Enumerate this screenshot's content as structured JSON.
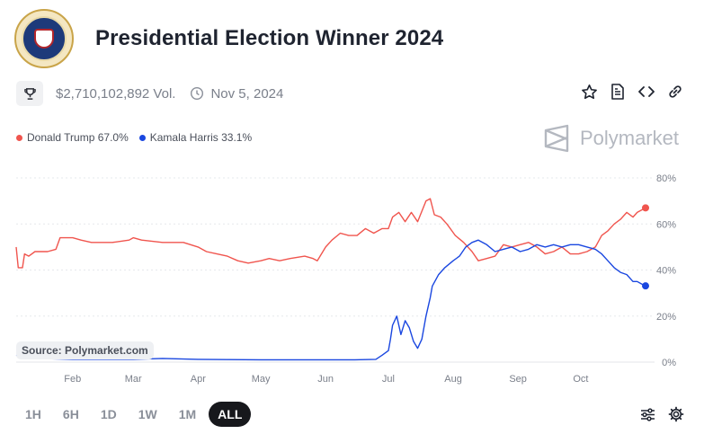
{
  "header": {
    "title": "Presidential Election Winner 2024"
  },
  "meta": {
    "volume": "$2,710,102,892 Vol.",
    "end_date": "Nov 5, 2024"
  },
  "brand": {
    "name": "Polymarket"
  },
  "source": "Source: Polymarket.com",
  "colors": {
    "trump": "#f0554e",
    "harris": "#1a47e0",
    "active_range": "#17181c"
  },
  "icons": {
    "meta": [
      "trophy-icon",
      "clock-icon"
    ],
    "actions": [
      "star-icon",
      "document-icon",
      "embed-code-icon",
      "link-icon"
    ],
    "tools": [
      "sliders-icon",
      "gear-icon"
    ],
    "brand": "polymarket-logo-icon",
    "header": "presidential-seal-icon"
  },
  "time_ranges": [
    {
      "label": "1H",
      "active": false
    },
    {
      "label": "6H",
      "active": false
    },
    {
      "label": "1D",
      "active": false
    },
    {
      "label": "1W",
      "active": false
    },
    {
      "label": "1M",
      "active": false
    },
    {
      "label": "ALL",
      "active": true
    }
  ],
  "chart_data": {
    "type": "line",
    "title": "",
    "xlabel": "",
    "ylabel": "",
    "x_ticks": [
      "Feb",
      "Mar",
      "Apr",
      "May",
      "Jun",
      "Jul",
      "Aug",
      "Sep",
      "Oct"
    ],
    "y_ticks": [
      "0%",
      "20%",
      "40%",
      "60%",
      "80%"
    ],
    "ylim": [
      0,
      80
    ],
    "grid": true,
    "legend_position": "top-left",
    "series": [
      {
        "name": "Donald Trump",
        "label": "67.0%",
        "points": [
          [
            "Jan 5",
            50
          ],
          [
            "Jan 6",
            41
          ],
          [
            "Jan 8",
            41
          ],
          [
            "Jan 9",
            47
          ],
          [
            "Jan 11",
            46
          ],
          [
            "Jan 14",
            48
          ],
          [
            "Jan 20",
            48
          ],
          [
            "Jan 24",
            49
          ],
          [
            "Jan 26",
            54
          ],
          [
            "Feb 1",
            54
          ],
          [
            "Feb 5",
            53
          ],
          [
            "Feb 10",
            52
          ],
          [
            "Feb 20",
            52
          ],
          [
            "Feb 28",
            53
          ],
          [
            "Mar 1",
            54
          ],
          [
            "Mar 5",
            53
          ],
          [
            "Mar 15",
            52
          ],
          [
            "Mar 25",
            52
          ],
          [
            "Apr 1",
            50
          ],
          [
            "Apr 5",
            48
          ],
          [
            "Apr 10",
            47
          ],
          [
            "Apr 15",
            46
          ],
          [
            "Apr 20",
            44
          ],
          [
            "Apr 25",
            43
          ],
          [
            "May 1",
            44
          ],
          [
            "May 5",
            45
          ],
          [
            "May 10",
            44
          ],
          [
            "May 15",
            45
          ],
          [
            "May 22",
            46
          ],
          [
            "May 26",
            45
          ],
          [
            "May 28",
            44
          ],
          [
            "Jun 1",
            50
          ],
          [
            "Jun 4",
            53
          ],
          [
            "Jun 8",
            56
          ],
          [
            "Jun 12",
            55
          ],
          [
            "Jun 16",
            55
          ],
          [
            "Jun 20",
            58
          ],
          [
            "Jun 24",
            56
          ],
          [
            "Jun 28",
            58
          ],
          [
            "Jul 1",
            58
          ],
          [
            "Jul 3",
            63
          ],
          [
            "Jul 6",
            65
          ],
          [
            "Jul 9",
            61
          ],
          [
            "Jul 12",
            65
          ],
          [
            "Jul 15",
            61
          ],
          [
            "Jul 19",
            70
          ],
          [
            "Jul 21",
            71
          ],
          [
            "Jul 23",
            64
          ],
          [
            "Jul 26",
            63
          ],
          [
            "Jul 29",
            60
          ],
          [
            "Aug 2",
            55
          ],
          [
            "Aug 6",
            52
          ],
          [
            "Aug 10",
            48
          ],
          [
            "Aug 13",
            44
          ],
          [
            "Aug 17",
            45
          ],
          [
            "Aug 21",
            46
          ],
          [
            "Aug 25",
            51
          ],
          [
            "Aug 29",
            50
          ],
          [
            "Sep 2",
            51
          ],
          [
            "Sep 6",
            52
          ],
          [
            "Sep 10",
            50
          ],
          [
            "Sep 14",
            47
          ],
          [
            "Sep 18",
            48
          ],
          [
            "Sep 22",
            50
          ],
          [
            "Sep 26",
            47
          ],
          [
            "Sep 30",
            47
          ],
          [
            "Oct 4",
            48
          ],
          [
            "Oct 8",
            50
          ],
          [
            "Oct 11",
            55
          ],
          [
            "Oct 14",
            57
          ],
          [
            "Oct 17",
            60
          ],
          [
            "Oct 20",
            62
          ],
          [
            "Oct 23",
            65
          ],
          [
            "Oct 26",
            63
          ],
          [
            "Oct 28",
            65
          ],
          [
            "Oct 30",
            66
          ],
          [
            "Nov 1",
            67
          ]
        ]
      },
      {
        "name": "Kamala Harris",
        "label": "33.1%",
        "points": [
          [
            "Jan 5",
            3
          ],
          [
            "Jan 10",
            2
          ],
          [
            "Jan 20",
            1.5
          ],
          [
            "Feb 1",
            1.2
          ],
          [
            "Feb 15",
            1.2
          ],
          [
            "Mar 1",
            1.2
          ],
          [
            "Mar 15",
            1.6
          ],
          [
            "Apr 1",
            1.2
          ],
          [
            "Apr 15",
            1.1
          ],
          [
            "May 1",
            1
          ],
          [
            "May 15",
            1
          ],
          [
            "Jun 1",
            1
          ],
          [
            "Jun 15",
            1
          ],
          [
            "Jun 25",
            1.2
          ],
          [
            "Jun 28",
            3
          ],
          [
            "Jul 1",
            5
          ],
          [
            "Jul 2",
            10
          ],
          [
            "Jul 3",
            16
          ],
          [
            "Jul 5",
            20
          ],
          [
            "Jul 7",
            12
          ],
          [
            "Jul 9",
            18
          ],
          [
            "Jul 11",
            15
          ],
          [
            "Jul 13",
            9
          ],
          [
            "Jul 15",
            6
          ],
          [
            "Jul 17",
            10
          ],
          [
            "Jul 19",
            20
          ],
          [
            "Jul 21",
            28
          ],
          [
            "Jul 22",
            33
          ],
          [
            "Jul 25",
            38
          ],
          [
            "Jul 28",
            41
          ],
          [
            "Aug 1",
            44
          ],
          [
            "Aug 4",
            46
          ],
          [
            "Aug 7",
            50
          ],
          [
            "Aug 10",
            52
          ],
          [
            "Aug 13",
            53
          ],
          [
            "Aug 17",
            51
          ],
          [
            "Aug 21",
            48
          ],
          [
            "Aug 25",
            49
          ],
          [
            "Aug 29",
            50
          ],
          [
            "Sep 2",
            48
          ],
          [
            "Sep 6",
            49
          ],
          [
            "Sep 10",
            51
          ],
          [
            "Sep 14",
            50
          ],
          [
            "Sep 18",
            51
          ],
          [
            "Sep 22",
            50
          ],
          [
            "Sep 26",
            51
          ],
          [
            "Sep 30",
            51
          ],
          [
            "Oct 4",
            50
          ],
          [
            "Oct 8",
            49
          ],
          [
            "Oct 11",
            47
          ],
          [
            "Oct 14",
            44
          ],
          [
            "Oct 17",
            41
          ],
          [
            "Oct 20",
            39
          ],
          [
            "Oct 23",
            38
          ],
          [
            "Oct 26",
            35
          ],
          [
            "Oct 28",
            35
          ],
          [
            "Oct 30",
            34
          ],
          [
            "Nov 1",
            33.1
          ]
        ]
      }
    ]
  }
}
